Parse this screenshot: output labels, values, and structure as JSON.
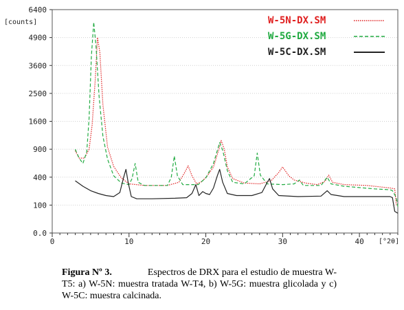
{
  "chart_data": {
    "type": "line",
    "ylabel": "[counts]",
    "xlabel": "[°2θ]",
    "xlim": [
      0,
      45
    ],
    "ylim": [
      0,
      6400
    ],
    "y_scale": "sqrt",
    "xticks": [
      0,
      10,
      20,
      30,
      40
    ],
    "yticks": [
      0,
      100,
      400,
      900,
      1600,
      2500,
      3600,
      4900,
      6400
    ],
    "ytick_labels": [
      "0.0",
      "100",
      "400",
      "900",
      "1600",
      "2500",
      "3600",
      "4900",
      "6400"
    ],
    "legend_position": "top-right",
    "series": [
      {
        "name": "W-5N-DX.SM",
        "color": "#e02020",
        "dash": "dotted",
        "points": [
          [
            3,
            870
          ],
          [
            3.5,
            720
          ],
          [
            4.2,
            720
          ],
          [
            4.8,
            900
          ],
          [
            5.2,
            1500
          ],
          [
            5.6,
            3000
          ],
          [
            5.9,
            4900
          ],
          [
            6.2,
            4200
          ],
          [
            6.6,
            2100
          ],
          [
            7.2,
            950
          ],
          [
            8,
            570
          ],
          [
            9,
            390
          ],
          [
            10,
            310
          ],
          [
            12,
            290
          ],
          [
            15,
            290
          ],
          [
            16.5,
            330
          ],
          [
            17.3,
            480
          ],
          [
            17.7,
            580
          ],
          [
            18.2,
            420
          ],
          [
            18.8,
            310
          ],
          [
            19.5,
            340
          ],
          [
            20.2,
            420
          ],
          [
            21,
            560
          ],
          [
            21.7,
            900
          ],
          [
            22,
            1100
          ],
          [
            22.4,
            900
          ],
          [
            22.8,
            560
          ],
          [
            23.5,
            380
          ],
          [
            25,
            320
          ],
          [
            27,
            310
          ],
          [
            28.5,
            350
          ],
          [
            29.5,
            470
          ],
          [
            30,
            560
          ],
          [
            30.8,
            420
          ],
          [
            31.5,
            360
          ],
          [
            33,
            320
          ],
          [
            34.5,
            300
          ],
          [
            35.5,
            340
          ],
          [
            36,
            430
          ],
          [
            36.5,
            330
          ],
          [
            38,
            300
          ],
          [
            41,
            290
          ],
          [
            44,
            260
          ],
          [
            44.6,
            250
          ],
          [
            44.8,
            100
          ]
        ]
      },
      {
        "name": "W-5G-DX.SM",
        "color": "#20aa40",
        "dash": "dashed",
        "points": [
          [
            3,
            900
          ],
          [
            3.5,
            720
          ],
          [
            4,
            620
          ],
          [
            4.5,
            850
          ],
          [
            4.8,
            1700
          ],
          [
            5.1,
            4000
          ],
          [
            5.4,
            5700
          ],
          [
            5.7,
            4500
          ],
          [
            6.1,
            2400
          ],
          [
            6.6,
            1200
          ],
          [
            7.2,
            700
          ],
          [
            8,
            420
          ],
          [
            9,
            320
          ],
          [
            10,
            300
          ],
          [
            10.4,
            380
          ],
          [
            10.8,
            620
          ],
          [
            11.2,
            330
          ],
          [
            12,
            290
          ],
          [
            15,
            290
          ],
          [
            15.5,
            400
          ],
          [
            15.9,
            760
          ],
          [
            16.3,
            420
          ],
          [
            17,
            300
          ],
          [
            19,
            300
          ],
          [
            20,
            390
          ],
          [
            21,
            620
          ],
          [
            21.8,
            1050
          ],
          [
            22.2,
            880
          ],
          [
            22.8,
            500
          ],
          [
            23.5,
            330
          ],
          [
            25,
            310
          ],
          [
            26.3,
            420
          ],
          [
            26.7,
            820
          ],
          [
            27.1,
            430
          ],
          [
            28,
            310
          ],
          [
            30,
            300
          ],
          [
            31.5,
            310
          ],
          [
            32.2,
            360
          ],
          [
            32.7,
            290
          ],
          [
            35,
            290
          ],
          [
            35.8,
            400
          ],
          [
            36.3,
            310
          ],
          [
            38,
            280
          ],
          [
            42,
            250
          ],
          [
            44,
            240
          ],
          [
            44.3,
            230
          ],
          [
            44.8,
            160
          ],
          [
            45,
            90
          ]
        ]
      },
      {
        "name": "W-5C-DX.SM",
        "color": "#222222",
        "dash": "solid",
        "points": [
          [
            3,
            350
          ],
          [
            4,
            280
          ],
          [
            5,
            230
          ],
          [
            6,
            200
          ],
          [
            7,
            180
          ],
          [
            8,
            170
          ],
          [
            8.8,
            210
          ],
          [
            9.3,
            400
          ],
          [
            9.6,
            520
          ],
          [
            9.9,
            320
          ],
          [
            10.3,
            170
          ],
          [
            11,
            150
          ],
          [
            13,
            150
          ],
          [
            16,
            155
          ],
          [
            17.5,
            160
          ],
          [
            18.2,
            200
          ],
          [
            18.7,
            300
          ],
          [
            19.1,
            180
          ],
          [
            19.6,
            220
          ],
          [
            20,
            200
          ],
          [
            20.5,
            190
          ],
          [
            21,
            260
          ],
          [
            21.5,
            420
          ],
          [
            21.8,
            520
          ],
          [
            22.2,
            330
          ],
          [
            22.8,
            200
          ],
          [
            24,
            180
          ],
          [
            26,
            180
          ],
          [
            27.3,
            210
          ],
          [
            28,
            330
          ],
          [
            28.3,
            380
          ],
          [
            28.7,
            250
          ],
          [
            29.5,
            180
          ],
          [
            32,
            170
          ],
          [
            35,
            175
          ],
          [
            35.8,
            230
          ],
          [
            36.3,
            190
          ],
          [
            38,
            170
          ],
          [
            44,
            170
          ],
          [
            44.3,
            160
          ],
          [
            44.6,
            60
          ],
          [
            45,
            50
          ]
        ]
      }
    ]
  },
  "caption": {
    "label": "Figura Nº 3.",
    "text": "Espectros de DRX para el estudio de muestra W-T5: a) W-5N: muestra tratada W-T4, b) W-5G: muestra glicolada y c)  W-5C: muestra calcinada."
  }
}
